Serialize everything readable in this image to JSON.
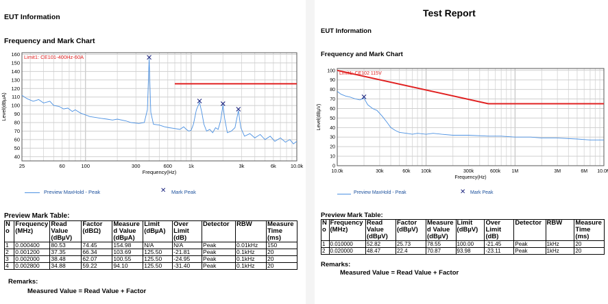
{
  "left_report": {
    "eut_heading": "EUT Information",
    "chart_heading": "Frequency and Mark Chart",
    "limit_label": "Limit1: CE101-400Hz-60A",
    "y_axis_label": "Level(dBµA)",
    "x_axis_label": "Frequency(Hz)",
    "legend": {
      "trace": "Preview MaxHold - Peak",
      "mark": "Mark Peak"
    },
    "table_title": "Preview Mark Table:",
    "table_headers": [
      "N o",
      "Frequency (MHz)",
      "Read Value (dBµV)",
      "Factor (dBΩ)",
      "Measure d Value (dBµA)",
      "Limit (dBµA)",
      "Over Limit (dB)",
      "Detector",
      "RBW",
      "Measure Time (ms)"
    ],
    "table_rows": [
      [
        "1",
        "0.000400",
        "80.53",
        "74.45",
        "154.98",
        "N/A",
        "N/A",
        "Peak",
        "0.01kHz",
        "150"
      ],
      [
        "2",
        "0.001200",
        "37.35",
        "66.34",
        "103.69",
        "125.50",
        "-21.81",
        "Peak",
        "0.1kHz",
        "20"
      ],
      [
        "3",
        "0.002000",
        "38.48",
        "62.07",
        "100.55",
        "125.50",
        "-24.95",
        "Peak",
        "0.1kHz",
        "20"
      ],
      [
        "4",
        "0.002800",
        "34.88",
        "59.22",
        "94.10",
        "125.50",
        "-31.40",
        "Peak",
        "0.1kHz",
        "20"
      ]
    ],
    "remarks_title": "Remarks:",
    "remarks_text": "Measured Value = Read Value + Factor"
  },
  "right_report": {
    "report_title": "Test Report",
    "eut_heading": "EUT Information",
    "chart_heading": "Frequency and Mark Chart",
    "limit_label": "Limit1: CE102 115V",
    "y_axis_label": "Level(dBµV)",
    "x_axis_label": "Frequency(Hz)",
    "legend": {
      "trace": "Preview MaxHold - Peak",
      "mark": "Mark Peak"
    },
    "table_title": "Preview Mark Table:",
    "table_headers": [
      "N o",
      "Frequency (MHz)",
      "Read Value (dBµV)",
      "Factor (dBµV)",
      "Measure d Value (dBµV)",
      "Limit (dBµV)",
      "Over Limit (dB)",
      "Detector",
      "RBW",
      "Measure Time (ms)"
    ],
    "table_rows": [
      [
        "1",
        "0.010000",
        "52.82",
        "25.73",
        "78.55",
        "100.00",
        "-21.45",
        "Peak",
        "1kHz",
        "20"
      ],
      [
        "2",
        "0.020000",
        "48.47",
        "22.4",
        "70.87",
        "93.98",
        "-23.11",
        "Peak",
        "1kHz",
        "20"
      ]
    ],
    "remarks_title": "Remarks:",
    "remarks_text": "Measured Value = Read Value + Factor"
  },
  "chart_data": [
    {
      "type": "line",
      "x_scale": "log",
      "xlim": [
        25,
        10000
      ],
      "ylim": [
        35,
        162
      ],
      "x_tick_labels": [
        "25",
        "60",
        "100",
        "300",
        "600",
        "1k",
        "3k",
        "6k",
        "10.0k"
      ],
      "x_tick_values": [
        25,
        60,
        100,
        300,
        600,
        1000,
        3000,
        6000,
        10000
      ],
      "y_tick_values": [
        40,
        50,
        60,
        70,
        80,
        90,
        100,
        110,
        120,
        130,
        140,
        150,
        160
      ],
      "grid": true,
      "trace_color": "#4a90e2",
      "limit_color": "#e02020",
      "limit": {
        "x": [
          700,
          10000
        ],
        "y": [
          125.5,
          125.5
        ]
      },
      "marks": [
        {
          "x": 400,
          "y": 154.98
        },
        {
          "x": 1200,
          "y": 103.69
        },
        {
          "x": 2000,
          "y": 100.55
        },
        {
          "x": 2800,
          "y": 94.1
        }
      ],
      "trace": [
        [
          25,
          112
        ],
        [
          28,
          108
        ],
        [
          32,
          105
        ],
        [
          36,
          107
        ],
        [
          40,
          103
        ],
        [
          46,
          105
        ],
        [
          50,
          100
        ],
        [
          56,
          99
        ],
        [
          62,
          96
        ],
        [
          68,
          97
        ],
        [
          75,
          93
        ],
        [
          80,
          95
        ],
        [
          90,
          91
        ],
        [
          100,
          89
        ],
        [
          110,
          87
        ],
        [
          125,
          86
        ],
        [
          140,
          85
        ],
        [
          160,
          84
        ],
        [
          180,
          83
        ],
        [
          200,
          84
        ],
        [
          240,
          82
        ],
        [
          270,
          80
        ],
        [
          320,
          79
        ],
        [
          360,
          80
        ],
        [
          385,
          95
        ],
        [
          400,
          154.98
        ],
        [
          415,
          92
        ],
        [
          440,
          78
        ],
        [
          500,
          77
        ],
        [
          560,
          75
        ],
        [
          620,
          74
        ],
        [
          700,
          73
        ],
        [
          780,
          72
        ],
        [
          850,
          75
        ],
        [
          900,
          72
        ],
        [
          950,
          70
        ],
        [
          1000,
          71
        ],
        [
          1050,
          78
        ],
        [
          1120,
          95
        ],
        [
          1200,
          103.69
        ],
        [
          1260,
          92
        ],
        [
          1320,
          78
        ],
        [
          1400,
          70
        ],
        [
          1500,
          72
        ],
        [
          1600,
          68
        ],
        [
          1700,
          74
        ],
        [
          1800,
          72
        ],
        [
          1900,
          82
        ],
        [
          2000,
          100.55
        ],
        [
          2080,
          84
        ],
        [
          2200,
          68
        ],
        [
          2400,
          70
        ],
        [
          2600,
          74
        ],
        [
          2800,
          94.1
        ],
        [
          2950,
          74
        ],
        [
          3200,
          64
        ],
        [
          3600,
          67
        ],
        [
          4000,
          62
        ],
        [
          4500,
          66
        ],
        [
          5000,
          60
        ],
        [
          5600,
          64
        ],
        [
          6200,
          58
        ],
        [
          7000,
          62
        ],
        [
          7800,
          57
        ],
        [
          8600,
          60
        ],
        [
          9300,
          55
        ],
        [
          10000,
          58
        ]
      ]
    },
    {
      "type": "line",
      "x_scale": "log",
      "xlim": [
        10000,
        10000000
      ],
      "ylim": [
        0,
        102
      ],
      "x_tick_labels": [
        "10.0k",
        "30k",
        "60k",
        "100k",
        "300k",
        "600k",
        "1M",
        "3M",
        "6M",
        "10.0M"
      ],
      "x_tick_values": [
        10000,
        30000,
        60000,
        100000,
        300000,
        600000,
        1000000,
        3000000,
        6000000,
        10000000
      ],
      "y_tick_values": [
        0,
        10,
        20,
        30,
        40,
        50,
        60,
        70,
        80,
        90,
        100
      ],
      "grid": true,
      "trace_color": "#4a90e2",
      "limit_color": "#e02020",
      "limit": {
        "x": [
          10000,
          500000,
          10000000
        ],
        "y": [
          100,
          65,
          65
        ]
      },
      "marks": [
        {
          "x": 20000,
          "y": 70.87
        }
      ],
      "trace": [
        [
          10000,
          78
        ],
        [
          11000,
          75
        ],
        [
          12500,
          73
        ],
        [
          14000,
          72
        ],
        [
          16000,
          70
        ],
        [
          18000,
          69
        ],
        [
          20000,
          70.87
        ],
        [
          22000,
          64
        ],
        [
          25000,
          60
        ],
        [
          28000,
          58
        ],
        [
          32000,
          52
        ],
        [
          36000,
          46
        ],
        [
          40000,
          40
        ],
        [
          45000,
          37
        ],
        [
          50000,
          35
        ],
        [
          60000,
          34
        ],
        [
          70000,
          33
        ],
        [
          80000,
          34
        ],
        [
          100000,
          33
        ],
        [
          120000,
          34
        ],
        [
          150000,
          33
        ],
        [
          200000,
          32
        ],
        [
          300000,
          32
        ],
        [
          500000,
          31
        ],
        [
          700000,
          31
        ],
        [
          1000000,
          30
        ],
        [
          1500000,
          30
        ],
        [
          2000000,
          29
        ],
        [
          3000000,
          29
        ],
        [
          5000000,
          28
        ],
        [
          7000000,
          27
        ],
        [
          10000000,
          27
        ]
      ]
    }
  ]
}
